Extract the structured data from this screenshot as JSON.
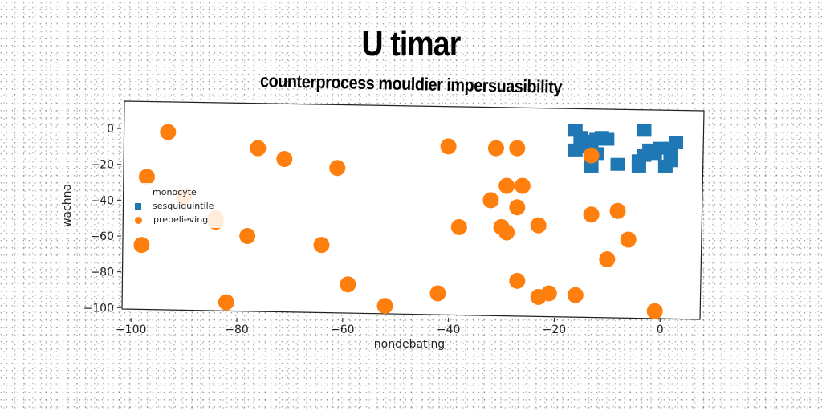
{
  "chart_data": {
    "type": "scatter",
    "title": "U timar",
    "subtitle": "counterprocess mouldier impersuasibility",
    "xlabel": "nondebating",
    "ylabel": "wachna",
    "xlim": [
      -102,
      8
    ],
    "ylim": [
      -103,
      9
    ],
    "xticks": [
      -100,
      -80,
      -60,
      -40,
      -20,
      0
    ],
    "yticks": [
      0,
      -20,
      -40,
      -60,
      -80,
      -100
    ],
    "xtick_labels": [
      "−100",
      "−80",
      "−60",
      "−40",
      "−20",
      "0"
    ],
    "ytick_labels": [
      "0",
      "−20",
      "−40",
      "−60",
      "−80",
      "−100"
    ],
    "grid": false,
    "legend": {
      "title": "monocyte",
      "position": "center-left"
    },
    "series": [
      {
        "name": "sesquiquintile",
        "marker": "square",
        "color": "#1f77b4",
        "points": [
          [
            -16,
            -1
          ],
          [
            -15,
            -5
          ],
          [
            -15,
            -10
          ],
          [
            -14,
            -7
          ],
          [
            -12,
            -6
          ],
          [
            -11,
            -5
          ],
          [
            -10,
            -6
          ],
          [
            -13,
            -12
          ],
          [
            -16,
            -12
          ],
          [
            -12,
            -14
          ],
          [
            -8,
            -20
          ],
          [
            -13,
            -21
          ],
          [
            -4,
            -18
          ],
          [
            -4,
            -21
          ],
          [
            -3,
            -1
          ],
          [
            -2,
            -12
          ],
          [
            -1,
            -14
          ],
          [
            0,
            -11
          ],
          [
            2,
            -11
          ],
          [
            3,
            -8
          ],
          [
            1,
            -21
          ],
          [
            2,
            -18
          ],
          [
            -3,
            -15
          ]
        ]
      },
      {
        "name": "prebelieving",
        "marker": "circle",
        "color": "#ff7f0e",
        "points": [
          [
            -93,
            -2
          ],
          [
            -76,
            -11
          ],
          [
            -71,
            -17
          ],
          [
            -61,
            -22
          ],
          [
            -40,
            -10
          ],
          [
            -31,
            -11
          ],
          [
            -27,
            -11
          ],
          [
            -97,
            -27
          ],
          [
            -90,
            -38
          ],
          [
            -84,
            -50
          ],
          [
            -84,
            -52
          ],
          [
            -98,
            -65
          ],
          [
            -78,
            -60
          ],
          [
            -64,
            -65
          ],
          [
            -29,
            -32
          ],
          [
            -26,
            -32
          ],
          [
            -32,
            -40
          ],
          [
            -27,
            -44
          ],
          [
            -38,
            -55
          ],
          [
            -30,
            -55
          ],
          [
            -29,
            -58
          ],
          [
            -23,
            -54
          ],
          [
            -13,
            -48
          ],
          [
            -8,
            -46
          ],
          [
            -6,
            -62
          ],
          [
            -10,
            -73
          ],
          [
            -13,
            -15
          ],
          [
            -59,
            -87
          ],
          [
            -52,
            -99
          ],
          [
            -42,
            -92
          ],
          [
            -27,
            -85
          ],
          [
            -23,
            -94
          ],
          [
            -21,
            -92
          ],
          [
            -16,
            -93
          ],
          [
            -82,
            -97
          ],
          [
            -1,
            -102
          ]
        ]
      }
    ]
  }
}
